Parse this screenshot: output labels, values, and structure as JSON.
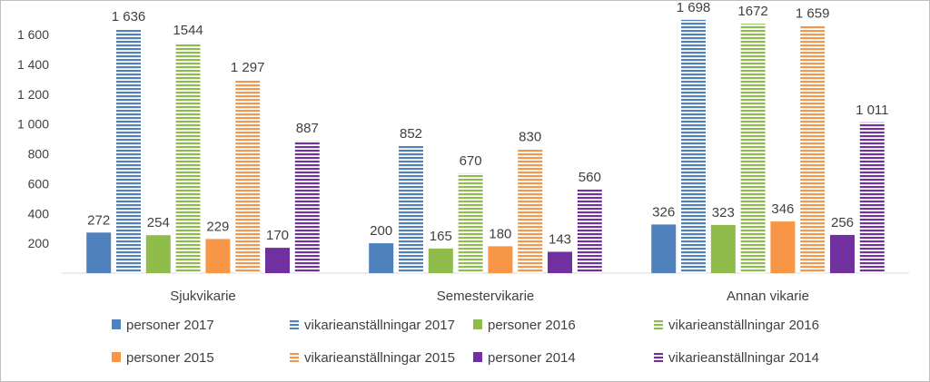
{
  "chart_data": {
    "type": "bar",
    "categories": [
      "Sjukvikarie",
      "Semestervikarie",
      "Annan vikarie"
    ],
    "ylim": [
      0,
      1700
    ],
    "yticks": [
      200,
      400,
      600,
      800,
      1000,
      1200,
      1400,
      1600
    ],
    "ytick_labels": [
      "200",
      "400",
      "600",
      "800",
      "1 000",
      "1 200",
      "1 400",
      "1 600"
    ],
    "grid": false,
    "legend_position": "bottom",
    "series": [
      {
        "name": "personer 2017",
        "values": [
          272,
          200,
          326
        ],
        "labels": [
          "272",
          "200",
          "326"
        ],
        "color": "#4f81bd",
        "pattern": "solid"
      },
      {
        "name": "vikarieanställningar 2017",
        "values": [
          1636,
          852,
          1698
        ],
        "labels": [
          "1 636",
          "852",
          "1 698"
        ],
        "color": "#4f81bd",
        "pattern": "striped"
      },
      {
        "name": "personer 2016",
        "values": [
          254,
          165,
          323
        ],
        "labels": [
          "254",
          "165",
          "323"
        ],
        "color": "#8fbc4a",
        "pattern": "solid"
      },
      {
        "name": "vikarieanställningar 2016",
        "values": [
          1544,
          670,
          1672
        ],
        "labels": [
          "1544",
          "670",
          "1672"
        ],
        "color": "#8fbc4a",
        "pattern": "striped"
      },
      {
        "name": "personer 2015",
        "values": [
          229,
          180,
          346
        ],
        "labels": [
          "229",
          "180",
          "346"
        ],
        "color": "#f79646",
        "pattern": "solid"
      },
      {
        "name": "vikarieanställningar 2015",
        "values": [
          1297,
          830,
          1659
        ],
        "labels": [
          "1 297",
          "830",
          "1 659"
        ],
        "color": "#f79646",
        "pattern": "striped"
      },
      {
        "name": "personer 2014",
        "values": [
          170,
          143,
          256
        ],
        "labels": [
          "170",
          "143",
          "256"
        ],
        "color": "#7030a0",
        "pattern": "solid"
      },
      {
        "name": "vikarieanställningar 2014",
        "values": [
          887,
          560,
          1011
        ],
        "labels": [
          "887",
          "560",
          "1 011"
        ],
        "color": "#7030a0",
        "pattern": "striped"
      }
    ]
  }
}
